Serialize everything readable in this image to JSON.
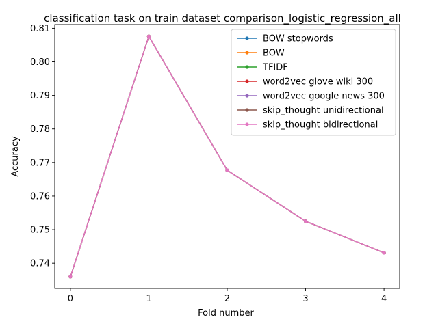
{
  "chart_data": {
    "type": "line",
    "title": "classification task on train dataset comparison_logistic_regression_all",
    "xlabel": "Fold number",
    "ylabel": "Accuracy",
    "x": [
      0,
      1,
      2,
      3,
      4
    ],
    "x_ticks": [
      0,
      1,
      2,
      3,
      4
    ],
    "y_ticks": [
      0.74,
      0.75,
      0.76,
      0.77,
      0.78,
      0.79,
      0.8,
      0.81
    ],
    "xlim": [
      -0.2,
      4.2
    ],
    "ylim": [
      0.7325,
      0.8111
    ],
    "grid": false,
    "legend_position": "top-right",
    "series": [
      {
        "name": "BOW stopwords",
        "color": "#1f77b4",
        "values": [
          0.736,
          0.8076,
          0.7677,
          0.7525,
          0.7431
        ]
      },
      {
        "name": "BOW",
        "color": "#ff7f0e",
        "values": [
          0.736,
          0.8076,
          0.7677,
          0.7525,
          0.7431
        ]
      },
      {
        "name": "TFIDF",
        "color": "#2ca02c",
        "values": [
          0.736,
          0.8076,
          0.7677,
          0.7525,
          0.7431
        ]
      },
      {
        "name": "word2vec glove wiki 300",
        "color": "#d62728",
        "values": [
          0.736,
          0.8076,
          0.7677,
          0.7525,
          0.7431
        ]
      },
      {
        "name": "word2vec google news 300",
        "color": "#9467bd",
        "values": [
          0.736,
          0.8076,
          0.7677,
          0.7525,
          0.7431
        ]
      },
      {
        "name": "skip_thought unidirectional",
        "color": "#8c564b",
        "values": [
          0.736,
          0.8076,
          0.7677,
          0.7525,
          0.7431
        ]
      },
      {
        "name": "skip_thought bidirectional",
        "color": "#e377c2",
        "values": [
          0.736,
          0.8076,
          0.7677,
          0.7525,
          0.7431
        ]
      }
    ]
  }
}
